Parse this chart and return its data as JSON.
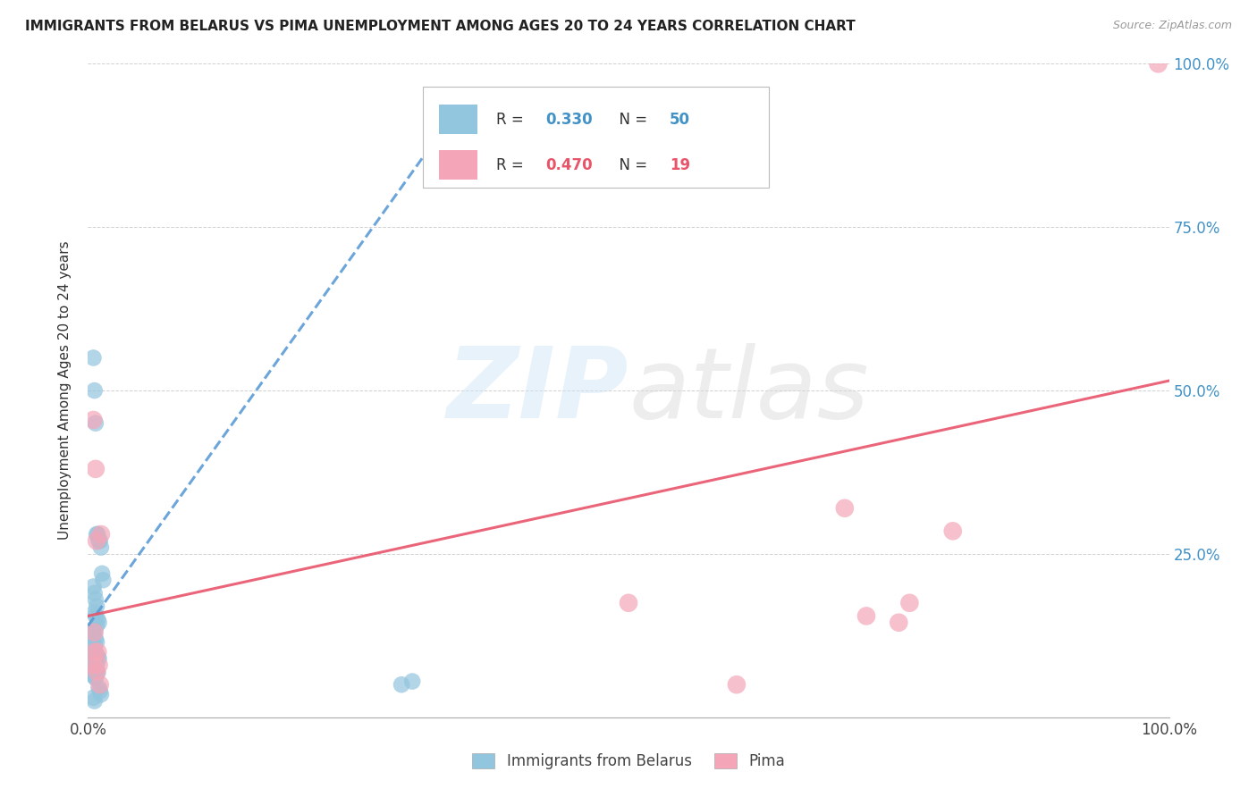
{
  "title": "IMMIGRANTS FROM BELARUS VS PIMA UNEMPLOYMENT AMONG AGES 20 TO 24 YEARS CORRELATION CHART",
  "source": "Source: ZipAtlas.com",
  "ylabel": "Unemployment Among Ages 20 to 24 years",
  "xlim": [
    0,
    1
  ],
  "ylim": [
    0,
    1
  ],
  "yticks": [
    0.0,
    0.25,
    0.5,
    0.75,
    1.0
  ],
  "ytick_labels": [
    "",
    "25.0%",
    "50.0%",
    "75.0%",
    "100.0%"
  ],
  "xticks": [
    0.0,
    0.25,
    0.5,
    0.75,
    1.0
  ],
  "xtick_labels": [
    "0.0%",
    "",
    "",
    "",
    "100.0%"
  ],
  "legend_blue_r": "0.330",
  "legend_blue_n": "50",
  "legend_pink_r": "0.470",
  "legend_pink_n": "19",
  "blue_color": "#92c5de",
  "pink_color": "#f4a6b8",
  "trendline_blue_color": "#5b9bd5",
  "trendline_pink_color": "#e8546a",
  "blue_scatter_x": [
    0.005,
    0.006,
    0.007,
    0.008,
    0.009,
    0.01,
    0.011,
    0.012,
    0.013,
    0.014,
    0.005,
    0.006,
    0.007,
    0.008,
    0.006,
    0.007,
    0.009,
    0.01,
    0.008,
    0.005,
    0.006,
    0.005,
    0.007,
    0.008,
    0.006,
    0.005,
    0.006,
    0.007,
    0.008,
    0.009,
    0.01,
    0.005,
    0.006,
    0.007,
    0.008,
    0.006,
    0.005,
    0.007,
    0.008,
    0.009,
    0.005,
    0.006,
    0.007,
    0.3,
    0.29,
    0.01,
    0.011,
    0.012,
    0.005,
    0.006
  ],
  "blue_scatter_y": [
    0.55,
    0.5,
    0.45,
    0.28,
    0.28,
    0.27,
    0.27,
    0.26,
    0.22,
    0.21,
    0.2,
    0.19,
    0.18,
    0.17,
    0.16,
    0.155,
    0.15,
    0.145,
    0.14,
    0.135,
    0.13,
    0.125,
    0.12,
    0.115,
    0.11,
    0.105,
    0.1,
    0.098,
    0.095,
    0.092,
    0.09,
    0.088,
    0.085,
    0.082,
    0.08,
    0.078,
    0.075,
    0.072,
    0.07,
    0.068,
    0.065,
    0.062,
    0.06,
    0.055,
    0.05,
    0.045,
    0.04,
    0.035,
    0.03,
    0.025
  ],
  "pink_scatter_x": [
    0.005,
    0.007,
    0.012,
    0.008,
    0.006,
    0.009,
    0.5,
    0.7,
    0.72,
    0.75,
    0.8,
    0.76,
    0.01,
    0.6,
    0.011,
    0.005,
    0.006,
    0.008,
    0.99
  ],
  "pink_scatter_y": [
    0.455,
    0.38,
    0.28,
    0.27,
    0.13,
    0.1,
    0.175,
    0.32,
    0.155,
    0.145,
    0.285,
    0.175,
    0.08,
    0.05,
    0.05,
    0.08,
    0.1,
    0.07,
    1.0
  ],
  "blue_trendline_x": [
    0.0,
    0.35
  ],
  "blue_trendline_y": [
    0.14,
    0.95
  ],
  "pink_trendline_x": [
    0.0,
    1.0
  ],
  "pink_trendline_y": [
    0.155,
    0.515
  ]
}
